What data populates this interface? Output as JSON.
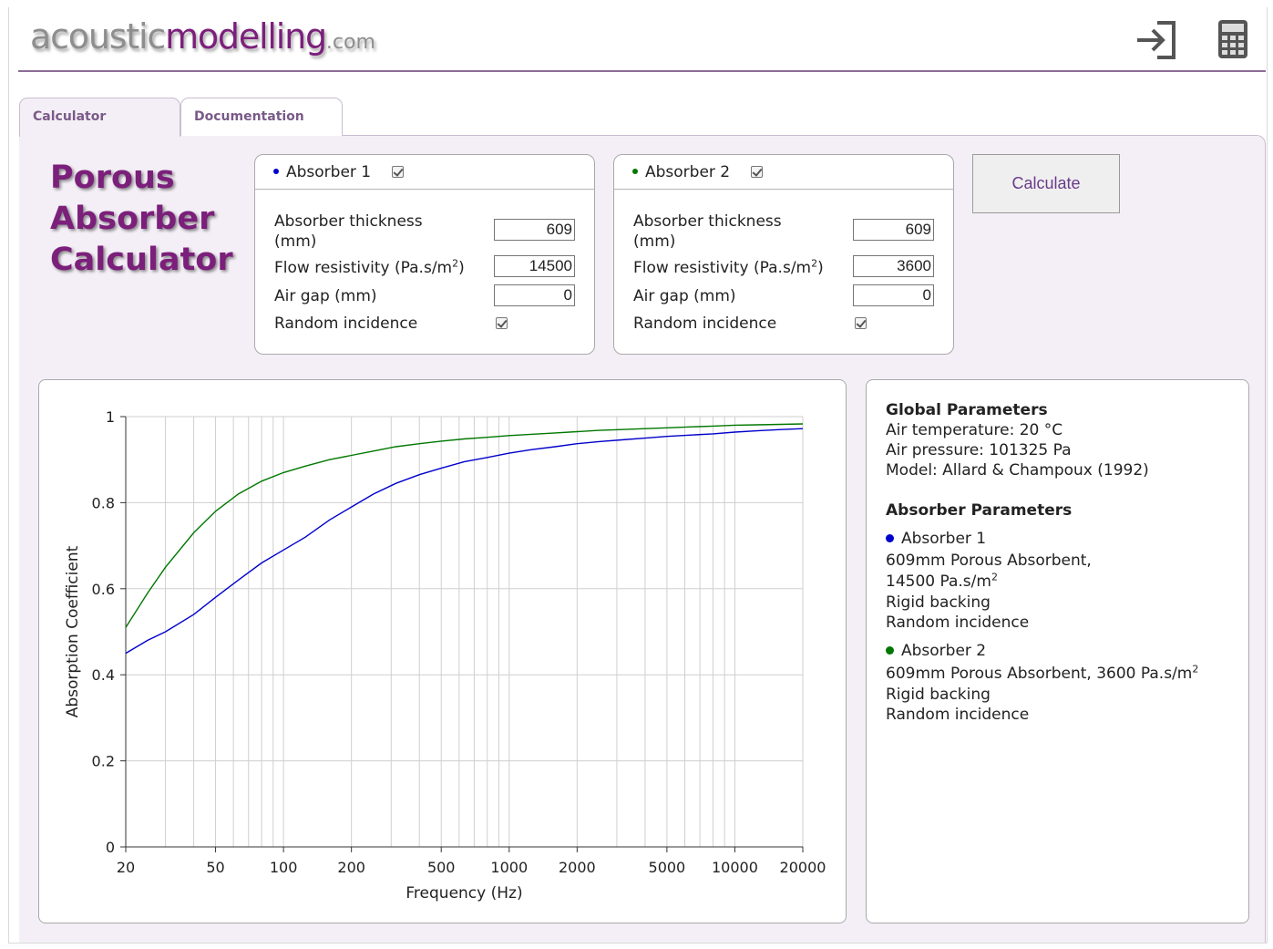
{
  "logo": {
    "part1": "acoustic",
    "part2": "modelling",
    "part3": ".com"
  },
  "header": {
    "icons": [
      "sign-in-icon",
      "calculator-icon"
    ]
  },
  "tabs": [
    {
      "label": "Calculator",
      "active": true
    },
    {
      "label": "Documentation",
      "active": false
    }
  ],
  "title": {
    "line1": "Porous",
    "line2": "Absorber",
    "line3": "Calculator"
  },
  "absorber1": {
    "name": "Absorber 1",
    "color": "#0000cc",
    "enabled": true,
    "thickness_label": "Absorber thickness",
    "thickness_unit": "(mm)",
    "thickness": "609",
    "flow_label": "Flow resistivity (Pa.s/m",
    "flow": "14500",
    "airgap_label": "Air gap (mm)",
    "airgap": "0",
    "random_label": "Random incidence",
    "random": true
  },
  "absorber2": {
    "name": "Absorber 2",
    "color": "#007700",
    "enabled": true,
    "thickness_label": "Absorber thickness",
    "thickness_unit": "(mm)",
    "thickness": "609",
    "flow_label": "Flow resistivity (Pa.s/m",
    "flow": "3600",
    "airgap_label": "Air gap (mm)",
    "airgap": "0",
    "random_label": "Random incidence",
    "random": true
  },
  "calculate_label": "Calculate",
  "info": {
    "global_title": "Global Parameters",
    "air_temp": "Air temperature: 20 °C",
    "air_pressure": "Air pressure: 101325 Pa",
    "model": "Model: Allard & Champoux (1992)",
    "absorber_title": "Absorber Parameters",
    "a1_name": "Absorber 1",
    "a1_line1": "609mm Porous Absorbent,",
    "a1_line2": "14500 Pa.s/m",
    "a1_line3": "Rigid backing",
    "a1_line4": "Random incidence",
    "a2_name": "Absorber 2",
    "a2_line1": "609mm Porous Absorbent, 3600 Pa.s/m",
    "a2_line2": "Rigid backing",
    "a2_line3": "Random incidence"
  },
  "chart_data": {
    "type": "line",
    "xlabel": "Frequency (Hz)",
    "ylabel": "Absorption Coefficient",
    "xscale": "log",
    "xlim": [
      20,
      20000
    ],
    "ylim": [
      0,
      1
    ],
    "xticks": [
      20,
      50,
      100,
      200,
      500,
      1000,
      2000,
      5000,
      10000,
      20000
    ],
    "yticks": [
      0,
      0.2,
      0.4,
      0.6,
      0.8,
      1
    ],
    "grid": true,
    "series": [
      {
        "color": "#0000cc",
        "x": [
          20,
          25,
          30,
          40,
          50,
          63,
          80,
          100,
          125,
          160,
          200,
          250,
          315,
          400,
          500,
          630,
          800,
          1000,
          1250,
          1600,
          2000,
          2500,
          3150,
          4000,
          5000,
          6300,
          8000,
          10000,
          12500,
          16000,
          20000
        ],
        "y": [
          0.45,
          0.48,
          0.5,
          0.54,
          0.58,
          0.62,
          0.66,
          0.69,
          0.72,
          0.76,
          0.79,
          0.82,
          0.845,
          0.865,
          0.88,
          0.895,
          0.905,
          0.915,
          0.923,
          0.93,
          0.937,
          0.942,
          0.946,
          0.95,
          0.954,
          0.957,
          0.96,
          0.964,
          0.967,
          0.97,
          0.972
        ]
      },
      {
        "color": "#007700",
        "x": [
          20,
          25,
          30,
          40,
          50,
          63,
          80,
          100,
          125,
          160,
          200,
          250,
          315,
          400,
          500,
          630,
          800,
          1000,
          1250,
          1600,
          2000,
          2500,
          3150,
          4000,
          5000,
          6300,
          8000,
          10000,
          12500,
          16000,
          20000
        ],
        "y": [
          0.51,
          0.59,
          0.65,
          0.73,
          0.78,
          0.82,
          0.85,
          0.87,
          0.885,
          0.9,
          0.91,
          0.92,
          0.93,
          0.937,
          0.943,
          0.948,
          0.952,
          0.956,
          0.959,
          0.962,
          0.965,
          0.968,
          0.97,
          0.972,
          0.974,
          0.976,
          0.978,
          0.98,
          0.981,
          0.982,
          0.983
        ]
      }
    ]
  }
}
